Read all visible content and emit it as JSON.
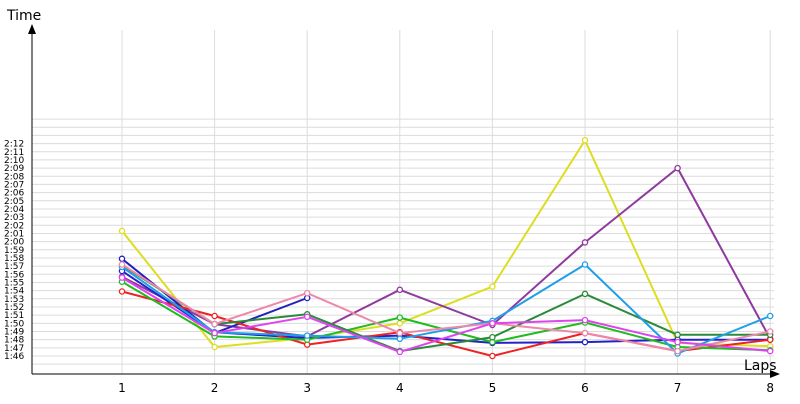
{
  "chart_data": {
    "type": "line",
    "xlabel": "Laps",
    "ylabel": "Time",
    "categories": [
      "1",
      "2",
      "3",
      "4",
      "5",
      "6",
      "7",
      "8"
    ],
    "y_ticks": [
      "1:46",
      "1:47",
      "1:48",
      "1:49",
      "1:50",
      "1:51",
      "1:52",
      "1:53",
      "1:54",
      "1:55",
      "1:56",
      "1:57",
      "1:58",
      "1:59",
      "2:00",
      "2:01",
      "2:02",
      "2:03",
      "2:04",
      "2:05",
      "2:06",
      "2:07",
      "2:08",
      "2:09",
      "2:10",
      "2:11",
      "2:12"
    ],
    "ylim": [
      "1:45",
      "2:15"
    ],
    "grid": true,
    "series": [
      {
        "color": "#dddd22",
        "values": [
          "2:01.3",
          "1:47.1",
          "1:48.2",
          "1:50.0",
          "1:54.5",
          "2:12.4",
          "1:47.6",
          "1:47.2"
        ]
      },
      {
        "color": "#8e3a9e",
        "values": [
          "1:55.7",
          "1:49.9",
          "1:48.4",
          "1:54.1",
          "1:49.8",
          "1:59.9",
          "2:09.0",
          "1:48.1"
        ]
      },
      {
        "color": "#2222bb",
        "values": [
          "1:57.9",
          "1:48.8",
          "1:53.1",
          null,
          null,
          null,
          null,
          null
        ]
      },
      {
        "color": "#2222cc",
        "values": [
          "1:56.4",
          "1:48.9",
          "1:48.2",
          "1:48.5",
          "1:47.6",
          "1:47.7",
          "1:48.0",
          "1:48.0"
        ]
      },
      {
        "color": "#ee2222",
        "values": [
          "1:53.9",
          "1:50.9",
          "1:47.4",
          "1:48.9",
          "1:46.0",
          "1:48.8",
          "1:46.6",
          "1:48.0"
        ]
      },
      {
        "color": "#22bb22",
        "values": [
          "1:55.1",
          "1:48.4",
          "1:48.0",
          "1:50.7",
          "1:47.7",
          "1:50.1",
          "1:47.1",
          "1:46.7"
        ]
      },
      {
        "color": "#2a8a3a",
        "values": [
          "1:57.1",
          "1:49.9",
          "1:51.1",
          "1:46.6",
          "1:48.3",
          "1:53.6",
          "1:48.6",
          "1:48.6"
        ]
      },
      {
        "color": "#1f9fe8",
        "values": [
          "1:56.9",
          "1:48.9",
          "1:48.5",
          "1:48.1",
          "1:50.3",
          "1:57.2",
          "1:46.3",
          "1:50.9"
        ]
      },
      {
        "color": "#ee88aa",
        "values": [
          "1:57.2",
          "1:49.9",
          "1:53.7",
          "1:48.8",
          "1:50.0",
          "1:48.8",
          "1:46.6",
          "1:49.0"
        ]
      },
      {
        "color": "#dd44ee",
        "values": [
          "1:55.6",
          "1:48.8",
          "1:50.8",
          "1:46.5",
          "1:50.0",
          "1:50.4",
          "1:47.7",
          "1:46.6"
        ]
      }
    ]
  }
}
